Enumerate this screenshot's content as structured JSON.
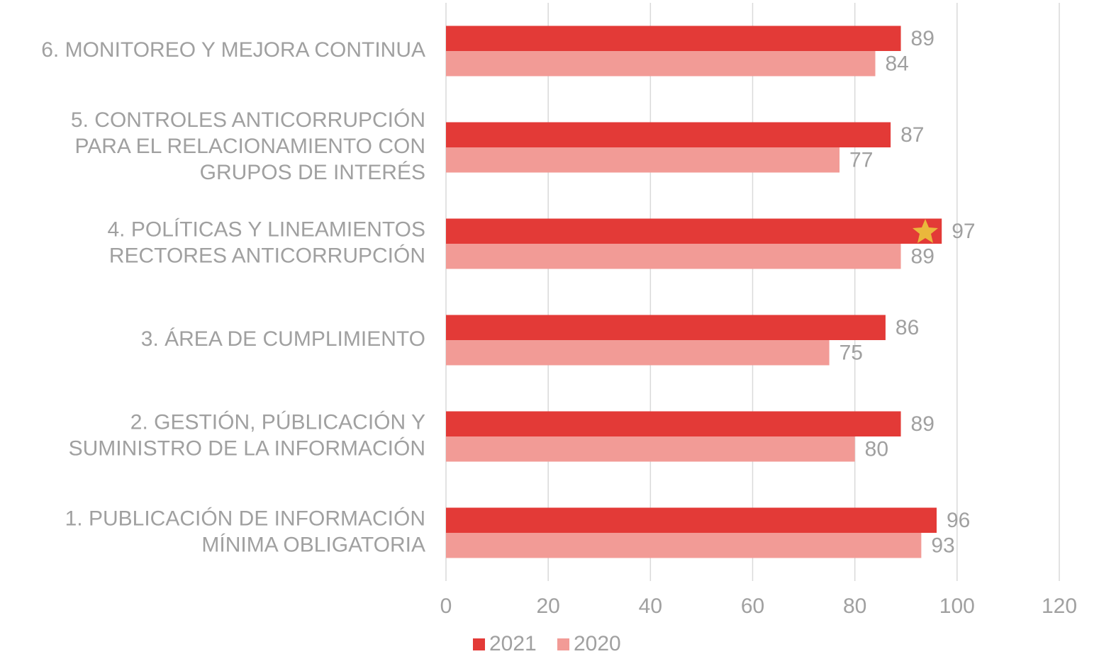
{
  "chart_data": {
    "type": "hbar",
    "categories": [
      [
        "6. MONITOREO Y MEJORA CONTINUA"
      ],
      [
        "5. CONTROLES ANTICORRUPCIÓN",
        "PARA EL RELACIONAMIENTO CON",
        "GRUPOS DE INTERÉS"
      ],
      [
        "4. POLÍTICAS Y LINEAMIENTOS",
        "RECTORES ANTICORRUPCIÓN"
      ],
      [
        "3. ÁREA DE CUMPLIMIENTO"
      ],
      [
        "2. GESTIÓN, PÚBLICACIÓN Y",
        "SUMINISTRO DE LA INFORMACIÓN"
      ],
      [
        "1. PUBLICACIÓN DE INFORMACIÓN",
        "MÍNIMA OBLIGATORIA"
      ]
    ],
    "series": [
      {
        "name": "2021",
        "color": "#e33a37",
        "values": [
          89,
          87,
          97,
          86,
          89,
          96
        ]
      },
      {
        "name": "2020",
        "color": "#f29b96",
        "values": [
          84,
          77,
          89,
          75,
          80,
          93
        ]
      }
    ],
    "xlim": [
      0,
      120
    ],
    "xticks": [
      0,
      20,
      40,
      60,
      80,
      100,
      120
    ],
    "grid": true,
    "legend": "bottom"
  }
}
